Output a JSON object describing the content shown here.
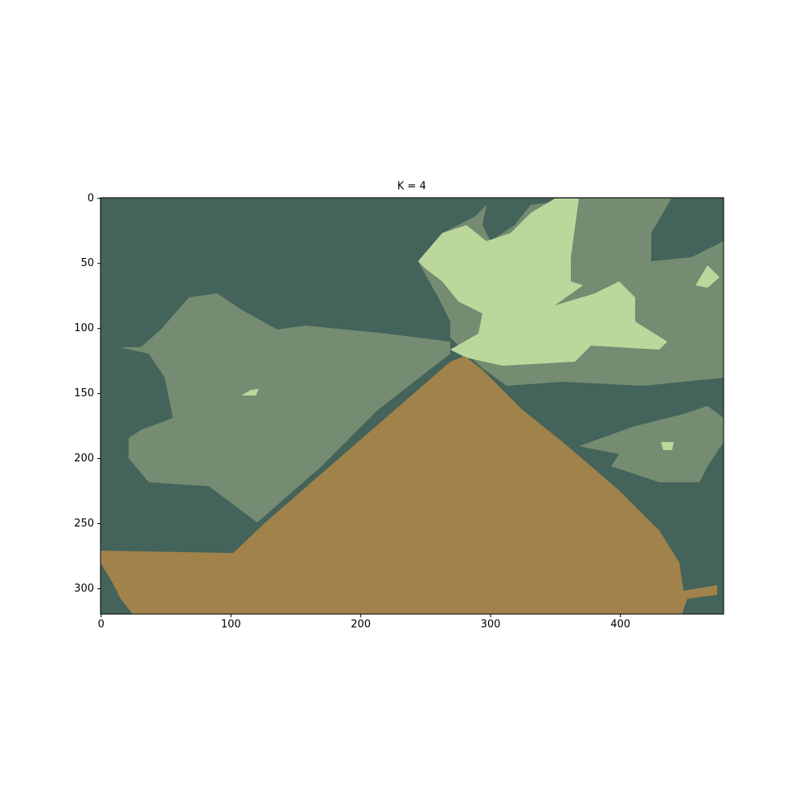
{
  "chart_data": {
    "type": "image",
    "title": "K = 4",
    "xlim": [
      -0.5,
      479.5
    ],
    "ylim": [
      319.5,
      -0.5
    ],
    "xticks": [
      0,
      100,
      200,
      300,
      400
    ],
    "yticks": [
      0,
      50,
      100,
      150,
      200,
      250,
      300
    ],
    "colors": [
      "#44635a",
      "#758c72",
      "#bcd79c",
      "#a0824a"
    ]
  }
}
